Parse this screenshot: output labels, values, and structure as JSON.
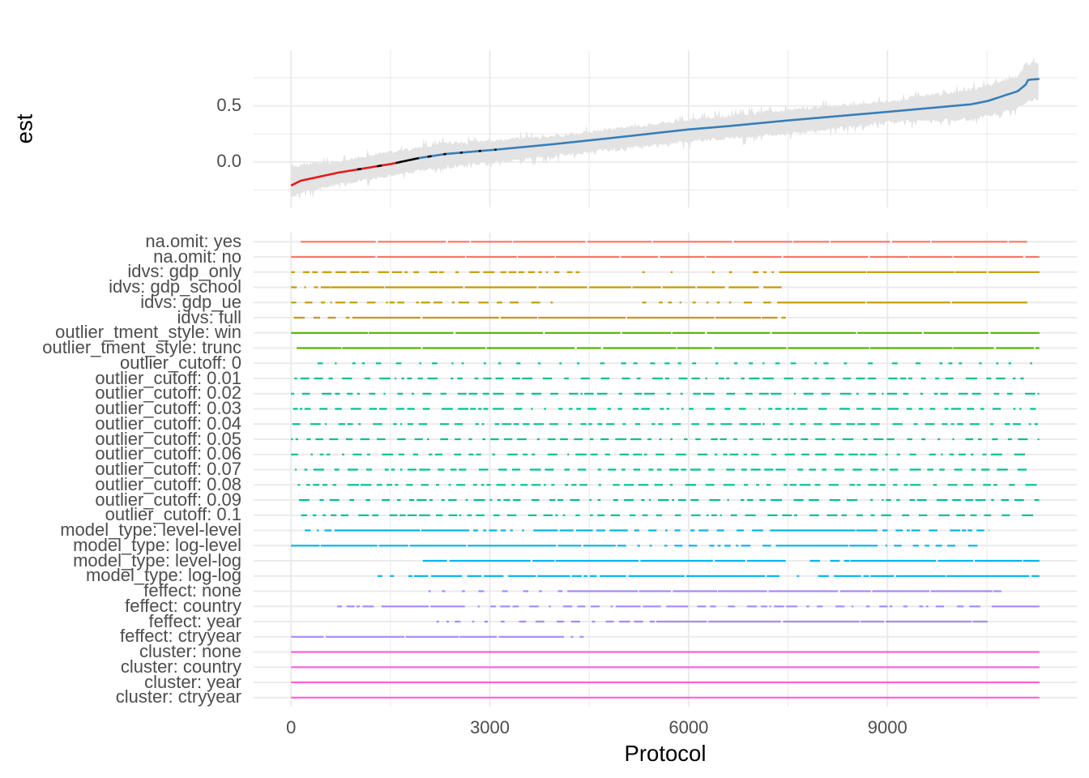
{
  "chart_data": [
    {
      "panel": "estimate",
      "type": "line",
      "title": "",
      "xlabel": "",
      "ylabel": "est",
      "xlim": [
        -565,
        11858
      ],
      "ylim": [
        -0.405,
        0.995
      ],
      "grid": true,
      "legend": "none",
      "yticks": [
        {
          "value": 0.0,
          "label": "0.0"
        },
        {
          "value": 0.5,
          "label": "0.5"
        }
      ],
      "y_minor": [
        -0.25,
        0.25,
        0.75
      ],
      "x_major": [
        0,
        3000,
        6000,
        9000
      ],
      "x_minor": [
        1500,
        4500,
        7500,
        10500
      ],
      "series": [
        {
          "name": "est",
          "x": [
            0,
            146,
            720,
            1524,
            1939,
            2341,
            3073,
            3963,
            4780,
            6000,
            6610,
            7500,
            9012,
            10268,
            10512,
            10963,
            11085,
            11122,
            11293
          ],
          "values": [
            -0.21,
            -0.167,
            -0.094,
            -0.016,
            0.036,
            0.072,
            0.109,
            0.159,
            0.21,
            0.29,
            0.32,
            0.37,
            0.447,
            0.514,
            0.543,
            0.63,
            0.688,
            0.732,
            0.739
          ]
        }
      ],
      "ribbon": {
        "name": "confidence interval",
        "color": "#E3E3E3",
        "x": [
          0,
          146,
          720,
          1524,
          2341,
          3963,
          6000,
          7500,
          9012,
          10268,
          10963,
          11085,
          11293
        ],
        "lower": [
          -0.31,
          -0.28,
          -0.2,
          -0.12,
          -0.05,
          0.05,
          0.18,
          0.25,
          0.35,
          0.38,
          0.47,
          0.53,
          0.56
        ],
        "upper": [
          -0.04,
          -0.02,
          0.01,
          0.09,
          0.17,
          0.23,
          0.38,
          0.47,
          0.54,
          0.65,
          0.76,
          0.88,
          0.88
        ]
      },
      "line_color_segments": [
        {
          "from": 0,
          "to": 1580,
          "color": "#E41A1C"
        },
        {
          "from": 1580,
          "to": 1930,
          "color": "#000000"
        },
        {
          "from": 1930,
          "to": 11293,
          "color": "#377EB8"
        },
        {
          "from": 1000,
          "to": 1060,
          "color": "#000000"
        },
        {
          "from": 1300,
          "to": 1370,
          "color": "#000000"
        },
        {
          "from": 2060,
          "to": 2120,
          "color": "#000000"
        },
        {
          "from": 2300,
          "to": 2340,
          "color": "#000000"
        },
        {
          "from": 2550,
          "to": 2590,
          "color": "#000000"
        },
        {
          "from": 2830,
          "to": 2870,
          "color": "#000000"
        },
        {
          "from": 3070,
          "to": 3100,
          "color": "#000000"
        }
      ]
    },
    {
      "panel": "specifications",
      "type": "heatmap",
      "title": "",
      "xlabel": "Protocol",
      "ylabel": "",
      "xlim": [
        -565,
        11858
      ],
      "grid": true,
      "legend": "none",
      "xticks": [
        {
          "value": 0,
          "label": "0"
        },
        {
          "value": 3000,
          "label": "3000"
        },
        {
          "value": 6000,
          "label": "6000"
        },
        {
          "value": 9000,
          "label": "9000"
        }
      ],
      "x_minor": [
        1500,
        4500,
        7500,
        10500
      ],
      "groups": {
        "na.omit": "#F8766D",
        "idvs": "#C49A00",
        "outlier_tment_style": "#53B400",
        "outlier_cutoff": "#00C094",
        "model_type": "#00B6EB",
        "feffect": "#A58AFF",
        "cluster": "#FB61D7"
      },
      "rows": [
        {
          "label": "na.omit: yes",
          "group": "na.omit",
          "color": "#F8766D",
          "segments": [
            {
              "from": 146,
              "to": 11110,
              "style": "mostly"
            }
          ]
        },
        {
          "label": "na.omit: no",
          "group": "na.omit",
          "color": "#F8766D",
          "segments": [
            {
              "from": 0,
              "to": 11293,
              "style": "mostly"
            }
          ]
        },
        {
          "label": "idvs: gdp_only",
          "group": "idvs",
          "color": "#C49A00",
          "segments": [
            {
              "from": 0,
              "to": 4354,
              "style": "dashed"
            },
            {
              "from": 5300,
              "to": 6610,
              "style": "rare"
            },
            {
              "from": 6610,
              "to": 7366,
              "style": "sparse"
            },
            {
              "from": 7366,
              "to": 11293,
              "style": "mostly"
            }
          ]
        },
        {
          "label": "idvs: gdp_school",
          "group": "idvs",
          "color": "#C49A00",
          "segments": [
            {
              "from": 0,
              "to": 600,
              "style": "dashed"
            },
            {
              "from": 600,
              "to": 6400,
              "style": "mostly"
            },
            {
              "from": 6400,
              "to": 7402,
              "style": "dense"
            }
          ]
        },
        {
          "label": "idvs: gdp_ue",
          "group": "idvs",
          "color": "#C49A00",
          "segments": [
            {
              "from": 0,
              "to": 3951,
              "style": "dashed"
            },
            {
              "from": 5300,
              "to": 6610,
              "style": "sparse"
            },
            {
              "from": 6610,
              "to": 7366,
              "style": "dashed"
            },
            {
              "from": 7366,
              "to": 11110,
              "style": "mostly"
            }
          ]
        },
        {
          "label": "idvs: full",
          "group": "idvs",
          "color": "#C49A00",
          "segments": [
            {
              "from": 40,
              "to": 1000,
              "style": "dashed"
            },
            {
              "from": 1000,
              "to": 7340,
              "style": "mostly"
            },
            {
              "from": 7400,
              "to": 7463,
              "style": "solid"
            }
          ]
        },
        {
          "label": "outlier_tment_style: win",
          "group": "outlier_tment_style",
          "color": "#53B400",
          "segments": [
            {
              "from": 0,
              "to": 11293,
              "style": "mostly"
            }
          ]
        },
        {
          "label": "outlier_tment_style: trunc",
          "group": "outlier_tment_style",
          "color": "#53B400",
          "segments": [
            {
              "from": 85,
              "to": 11293,
              "style": "mostly"
            }
          ]
        },
        {
          "label": "outlier_cutoff: 0",
          "group": "outlier_cutoff",
          "color": "#00C094",
          "segments": [
            {
              "from": 400,
              "to": 11200,
              "style": "sparse"
            }
          ]
        },
        {
          "label": "outlier_cutoff: 0.01",
          "group": "outlier_cutoff",
          "color": "#00C094",
          "segments": [
            {
              "from": 50,
              "to": 11200,
              "style": "dashed"
            }
          ]
        },
        {
          "label": "outlier_cutoff: 0.02",
          "group": "outlier_cutoff",
          "color": "#00C094",
          "segments": [
            {
              "from": 0,
              "to": 11290,
              "style": "dashed"
            }
          ]
        },
        {
          "label": "outlier_cutoff: 0.03",
          "group": "outlier_cutoff",
          "color": "#00C094",
          "segments": [
            {
              "from": 30,
              "to": 11290,
              "style": "dashed"
            }
          ]
        },
        {
          "label": "outlier_cutoff: 0.04",
          "group": "outlier_cutoff",
          "color": "#00C094",
          "segments": [
            {
              "from": 20,
              "to": 11290,
              "style": "dashed"
            }
          ]
        },
        {
          "label": "outlier_cutoff: 0.05",
          "group": "outlier_cutoff",
          "color": "#00C094",
          "segments": [
            {
              "from": 0,
              "to": 11290,
              "style": "dashed"
            }
          ]
        },
        {
          "label": "outlier_cutoff: 0.06",
          "group": "outlier_cutoff",
          "color": "#00C094",
          "segments": [
            {
              "from": 0,
              "to": 11100,
              "style": "dashed"
            }
          ]
        },
        {
          "label": "outlier_cutoff: 0.07",
          "group": "outlier_cutoff",
          "color": "#00C094",
          "segments": [
            {
              "from": 60,
              "to": 11200,
              "style": "dashed"
            }
          ]
        },
        {
          "label": "outlier_cutoff: 0.08",
          "group": "outlier_cutoff",
          "color": "#00C094",
          "segments": [
            {
              "from": 100,
              "to": 11290,
              "style": "dashed"
            }
          ]
        },
        {
          "label": "outlier_cutoff: 0.09",
          "group": "outlier_cutoff",
          "color": "#00C094",
          "segments": [
            {
              "from": 120,
              "to": 11290,
              "style": "dashed"
            }
          ]
        },
        {
          "label": "outlier_cutoff: 0.1",
          "group": "outlier_cutoff",
          "color": "#00C094",
          "segments": [
            {
              "from": 150,
              "to": 11290,
              "style": "dashed"
            }
          ]
        },
        {
          "label": "model_type: level-level",
          "group": "model_type",
          "color": "#00B6EB",
          "segments": [
            {
              "from": 207,
              "to": 756,
              "style": "dashed"
            },
            {
              "from": 756,
              "to": 2524,
              "style": "mostly"
            },
            {
              "from": 2524,
              "to": 3683,
              "style": "dashed"
            },
            {
              "from": 3683,
              "to": 5024,
              "style": "dense"
            },
            {
              "from": 5024,
              "to": 7280,
              "style": "dashed"
            },
            {
              "from": 7280,
              "to": 8744,
              "style": "mostly"
            },
            {
              "from": 8744,
              "to": 10537,
              "style": "dashed"
            }
          ]
        },
        {
          "label": "model_type: log-level",
          "group": "model_type",
          "color": "#00B6EB",
          "segments": [
            {
              "from": 0,
              "to": 5024,
              "style": "mostly"
            },
            {
              "from": 5024,
              "to": 7317,
              "style": "dashed"
            },
            {
              "from": 7317,
              "to": 8805,
              "style": "mostly"
            },
            {
              "from": 8805,
              "to": 10427,
              "style": "dashed"
            }
          ]
        },
        {
          "label": "model_type: level-log",
          "group": "model_type",
          "color": "#00B6EB",
          "segments": [
            {
              "from": 1988,
              "to": 7439,
              "style": "mostly"
            },
            {
              "from": 7439,
              "to": 7829,
              "style": "rare"
            },
            {
              "from": 7829,
              "to": 8439,
              "style": "dashed"
            },
            {
              "from": 8439,
              "to": 11293,
              "style": "mostly"
            }
          ]
        },
        {
          "label": "model_type: log-log",
          "group": "model_type",
          "color": "#00B6EB",
          "segments": [
            {
              "from": 1305,
              "to": 1854,
              "style": "sparse"
            },
            {
              "from": 1854,
              "to": 4171,
              "style": "dense"
            },
            {
              "from": 4171,
              "to": 4659,
              "style": "dashed"
            },
            {
              "from": 4659,
              "to": 7341,
              "style": "mostly"
            },
            {
              "from": 7341,
              "to": 7951,
              "style": "rare"
            },
            {
              "from": 7951,
              "to": 8744,
              "style": "dense"
            },
            {
              "from": 8744,
              "to": 11293,
              "style": "mostly"
            }
          ]
        },
        {
          "label": "feffect: none",
          "group": "feffect",
          "color": "#A58AFF",
          "segments": [
            {
              "from": 2073,
              "to": 4171,
              "style": "sparse"
            },
            {
              "from": 4171,
              "to": 10720,
              "style": "mostly"
            }
          ]
        },
        {
          "label": "feffect: country",
          "group": "feffect",
          "color": "#A58AFF",
          "segments": [
            {
              "from": 695,
              "to": 1366,
              "style": "dashed"
            },
            {
              "from": 1366,
              "to": 2524,
              "style": "mostly"
            },
            {
              "from": 2524,
              "to": 4902,
              "style": "dashed"
            },
            {
              "from": 4902,
              "to": 5841,
              "style": "dense"
            },
            {
              "from": 5841,
              "to": 10573,
              "style": "dashed"
            },
            {
              "from": 10573,
              "to": 11293,
              "style": "mostly"
            }
          ]
        },
        {
          "label": "feffect: year",
          "group": "feffect",
          "color": "#A58AFF",
          "segments": [
            {
              "from": 2195,
              "to": 3439,
              "style": "sparse"
            },
            {
              "from": 3439,
              "to": 5512,
              "style": "dashed"
            },
            {
              "from": 5512,
              "to": 10512,
              "style": "mostly"
            }
          ]
        },
        {
          "label": "feffect: ctryyear",
          "group": "feffect",
          "color": "#A58AFF",
          "segments": [
            {
              "from": 0,
              "to": 4049,
              "style": "mostly"
            },
            {
              "from": 4049,
              "to": 4415,
              "style": "sparse"
            }
          ]
        },
        {
          "label": "cluster: none",
          "group": "cluster",
          "color": "#FB61D7",
          "segments": [
            {
              "from": 0,
              "to": 11293,
              "style": "solid"
            }
          ]
        },
        {
          "label": "cluster: country",
          "group": "cluster",
          "color": "#FB61D7",
          "segments": [
            {
              "from": 0,
              "to": 11293,
              "style": "solid"
            }
          ]
        },
        {
          "label": "cluster: year",
          "group": "cluster",
          "color": "#FB61D7",
          "segments": [
            {
              "from": 0,
              "to": 11293,
              "style": "solid"
            }
          ]
        },
        {
          "label": "cluster: ctryyear",
          "group": "cluster",
          "color": "#FB61D7",
          "segments": [
            {
              "from": 0,
              "to": 11293,
              "style": "solid"
            }
          ]
        }
      ]
    }
  ]
}
